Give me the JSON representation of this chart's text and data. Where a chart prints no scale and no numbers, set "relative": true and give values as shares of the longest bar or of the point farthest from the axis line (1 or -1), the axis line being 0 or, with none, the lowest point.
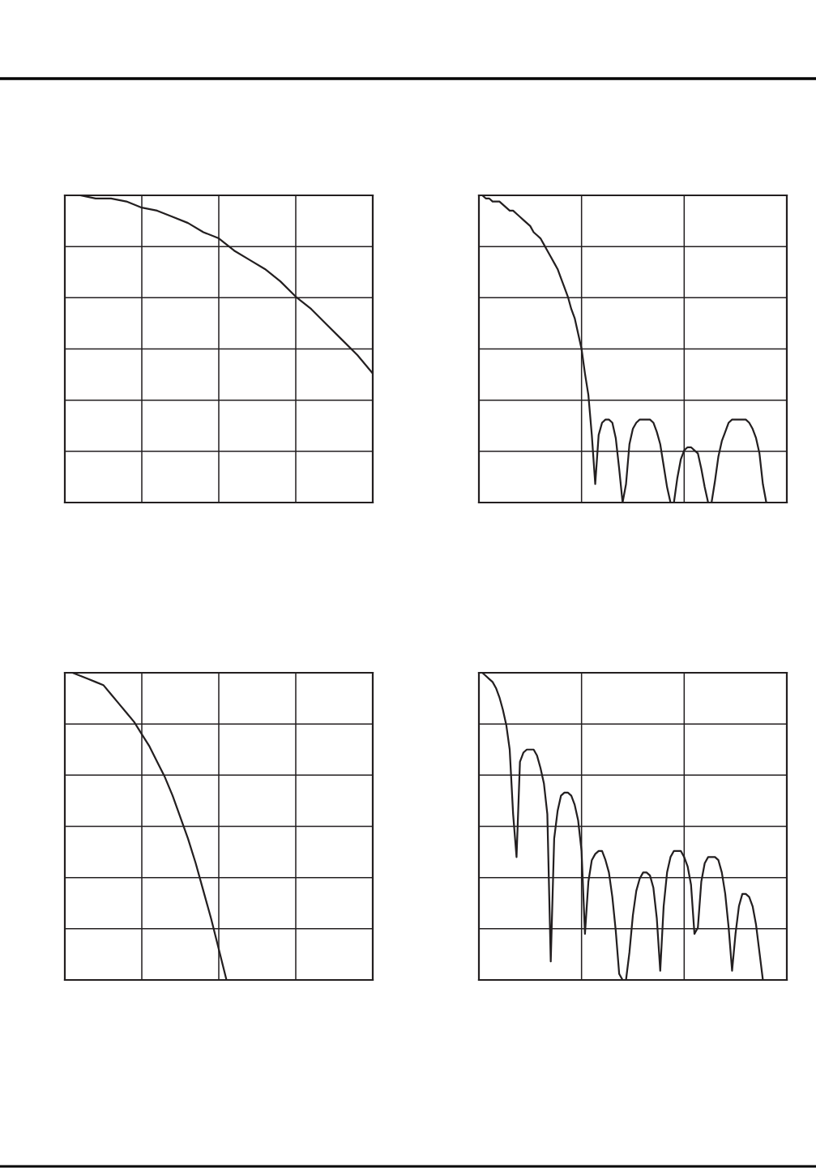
{
  "chart_data": [
    {
      "type": "line",
      "relative": true,
      "grid": true,
      "tick_labels": false,
      "categories": [
        null,
        null,
        null,
        null,
        null,
        null,
        null,
        null,
        null,
        null,
        null,
        null,
        null,
        null,
        null,
        null,
        null,
        null,
        null,
        null,
        null
      ],
      "series": [
        {
          "color": "#231f20",
          "values": [
            1.0,
            1.0,
            0.99,
            0.99,
            0.98,
            0.96,
            0.95,
            0.93,
            0.91,
            0.88,
            0.86,
            0.82,
            0.79,
            0.76,
            0.72,
            0.67,
            0.63,
            0.58,
            0.53,
            0.48,
            0.42
          ]
        }
      ]
    },
    {
      "type": "line",
      "relative": true,
      "grid": true,
      "tick_labels": false,
      "categories": [
        null,
        null,
        null,
        null,
        null,
        null,
        null,
        null,
        null,
        null,
        null,
        null,
        null,
        null,
        null,
        null,
        null,
        null,
        null,
        null,
        null,
        null,
        null,
        null,
        null,
        null,
        null,
        null,
        null,
        null,
        null,
        null,
        null,
        null,
        null,
        null,
        null,
        null,
        null,
        null,
        null,
        null,
        null,
        null,
        null,
        null,
        null,
        null,
        null,
        null,
        null,
        null,
        null,
        null,
        null,
        null,
        null,
        null,
        null,
        null,
        null,
        null,
        null,
        null,
        null,
        null,
        null,
        null,
        null,
        null,
        null,
        null,
        null,
        null,
        null,
        null,
        null,
        null,
        null,
        null,
        null,
        null,
        null,
        null,
        null,
        null,
        null,
        null,
        null,
        null,
        null
      ],
      "series": [
        {
          "color": "#231f20",
          "values": [
            1.0,
            1.0,
            0.99,
            0.99,
            0.98,
            0.98,
            0.98,
            0.97,
            0.96,
            0.95,
            0.95,
            0.94,
            0.93,
            0.92,
            0.91,
            0.9,
            0.88,
            0.87,
            0.86,
            0.84,
            0.82,
            0.8,
            0.78,
            0.76,
            0.73,
            0.7,
            0.67,
            0.63,
            0.6,
            0.55,
            0.5,
            0.42,
            0.35,
            0.22,
            0.06,
            0.22,
            0.26,
            0.27,
            0.27,
            0.26,
            0.21,
            0.11,
            0.0,
            0.06,
            0.19,
            0.24,
            0.26,
            0.27,
            0.27,
            0.27,
            0.27,
            0.26,
            0.23,
            0.19,
            0.12,
            0.05,
            0.0,
            0.0,
            0.08,
            0.14,
            0.17,
            0.18,
            0.18,
            0.17,
            0.16,
            0.11,
            0.05,
            0.0,
            0.0,
            0.07,
            0.15,
            0.2,
            0.23,
            0.26,
            0.27,
            0.27,
            0.27,
            0.27,
            0.27,
            0.26,
            0.24,
            0.21,
            0.16,
            0.06,
            0.0,
            null,
            null,
            null,
            null,
            null,
            null
          ]
        }
      ]
    },
    {
      "type": "line",
      "relative": true,
      "grid": true,
      "tick_labels": false,
      "categories": [
        null,
        null,
        null,
        null,
        null,
        null,
        null,
        null,
        null,
        null,
        null,
        null,
        null,
        null,
        null,
        null,
        null,
        null,
        null,
        null,
        null,
        null,
        null,
        null,
        null,
        null,
        null,
        null,
        null,
        null,
        null,
        null,
        null,
        null,
        null,
        null,
        null,
        null,
        null,
        null,
        null
      ],
      "series": [
        {
          "color": "#231f20",
          "values": [
            1.0,
            1.0,
            0.99,
            0.98,
            0.97,
            0.96,
            0.93,
            0.9,
            0.87,
            0.84,
            0.8,
            0.76,
            0.71,
            0.66,
            0.6,
            0.53,
            0.46,
            0.38,
            0.29,
            0.2,
            0.1,
            0.0,
            null,
            null,
            null,
            null,
            null,
            null,
            null,
            null,
            null,
            null,
            null,
            null,
            null,
            null,
            null,
            null,
            null,
            null,
            null
          ]
        }
      ]
    },
    {
      "type": "line",
      "relative": true,
      "grid": true,
      "tick_labels": false,
      "categories": [
        null,
        null,
        null,
        null,
        null,
        null,
        null,
        null,
        null,
        null,
        null,
        null,
        null,
        null,
        null,
        null,
        null,
        null,
        null,
        null,
        null,
        null,
        null,
        null,
        null,
        null,
        null,
        null,
        null,
        null,
        null,
        null,
        null,
        null,
        null,
        null,
        null,
        null,
        null,
        null,
        null,
        null,
        null,
        null,
        null,
        null,
        null,
        null,
        null,
        null,
        null,
        null,
        null,
        null,
        null,
        null,
        null,
        null,
        null,
        null,
        null,
        null,
        null,
        null,
        null,
        null,
        null,
        null,
        null,
        null,
        null,
        null,
        null,
        null,
        null,
        null,
        null,
        null,
        null,
        null,
        null,
        null,
        null,
        null,
        null,
        null,
        null,
        null,
        null,
        null,
        null
      ],
      "series": [
        {
          "color": "#231f20",
          "values": [
            1.0,
            1.0,
            0.99,
            0.98,
            0.97,
            0.95,
            0.92,
            0.88,
            0.83,
            0.75,
            0.54,
            0.4,
            0.71,
            0.74,
            0.75,
            0.75,
            0.75,
            0.73,
            0.69,
            0.64,
            0.54,
            0.06,
            0.46,
            0.55,
            0.6,
            0.61,
            0.61,
            0.6,
            0.57,
            0.52,
            0.42,
            0.15,
            0.32,
            0.39,
            0.41,
            0.42,
            0.42,
            0.39,
            0.35,
            0.27,
            0.16,
            0.02,
            0.0,
            0.0,
            0.09,
            0.21,
            0.29,
            0.33,
            0.35,
            0.35,
            0.34,
            0.3,
            0.2,
            0.03,
            0.24,
            0.35,
            0.4,
            0.42,
            0.42,
            0.42,
            0.4,
            0.37,
            0.31,
            0.15,
            0.17,
            0.32,
            0.38,
            0.4,
            0.4,
            0.4,
            0.39,
            0.35,
            0.28,
            0.17,
            0.03,
            0.15,
            0.24,
            0.28,
            0.28,
            0.27,
            0.24,
            0.18,
            0.09,
            0.0,
            null,
            null,
            null,
            null,
            null,
            null,
            null
          ]
        }
      ]
    }
  ]
}
